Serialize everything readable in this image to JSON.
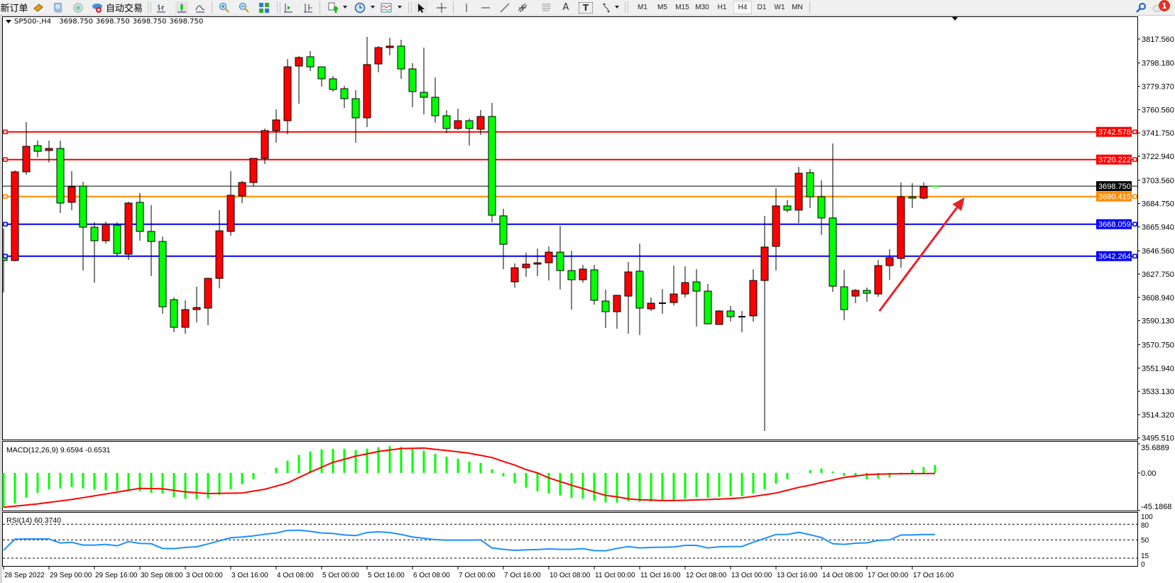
{
  "toolbar": {
    "new_order": "新订单",
    "auto_trading": "自动交易",
    "icons": [
      "market-watch-icon",
      "navigator-icon",
      "signals-icon",
      "auto-trading-icon",
      "bar-chart-icon",
      "candlestick-icon",
      "line-chart-icon",
      "zoom-in-icon",
      "zoom-out-icon",
      "tile-windows-icon",
      "auto-scroll-icon",
      "chart-shift-icon",
      "indicators-icon",
      "periods-icon",
      "templates-icon",
      "cursor-icon",
      "crosshair-icon",
      "vertical-line-icon",
      "horizontal-line-icon",
      "trend-line-icon",
      "equidistant-channel-icon",
      "fibonacci-icon",
      "text-icon",
      "text-label-icon",
      "arrows-icon",
      "search-icon",
      "notifications-icon"
    ],
    "text_tool": "A",
    "label_tool": "T",
    "timeframes": [
      "M1",
      "M5",
      "M15",
      "M30",
      "H1",
      "H4",
      "D1",
      "W1",
      "MN"
    ],
    "active_timeframe": "H4",
    "notification_count": "1"
  },
  "chart": {
    "symbol_timeframe": "SP500-,H4",
    "ohlc": [
      "3698.750",
      "3698.750",
      "3698.750",
      "3698.750"
    ]
  },
  "chart_data": {
    "type": "candlestick",
    "symbol": "SP500-",
    "timeframe": "H4",
    "colors": {
      "bull": "#ff0000",
      "bear": "#00ff00",
      "wick": "#000000"
    },
    "ylim": [
      3495.51,
      3827.0
    ],
    "grid": false,
    "candle_fields": [
      "open",
      "high",
      "low",
      "close"
    ],
    "candles": [
      [
        3643.8,
        3664.5,
        3612.9,
        3638.7
      ],
      [
        3638.7,
        3711.5,
        3638.1,
        3710.3
      ],
      [
        3710.3,
        3750.4,
        3708.0,
        3730.9
      ],
      [
        3731.5,
        3735.5,
        3722.3,
        3726.9
      ],
      [
        3727.5,
        3735.5,
        3717.8,
        3729.2
      ],
      [
        3729.2,
        3735.5,
        3677.1,
        3685.1
      ],
      [
        3685.7,
        3710.9,
        3679.4,
        3698.3
      ],
      [
        3698.8,
        3702.3,
        3630.6,
        3665.6
      ],
      [
        3665.6,
        3669.6,
        3620.9,
        3654.7
      ],
      [
        3654.7,
        3670.2,
        3652.4,
        3667.9
      ],
      [
        3667.3,
        3669.6,
        3642.1,
        3644.4
      ],
      [
        3643.8,
        3686.2,
        3639.2,
        3685.1
      ],
      [
        3685.7,
        3693.1,
        3654.7,
        3662.2
      ],
      [
        3662.2,
        3683.4,
        3626.1,
        3654.1
      ],
      [
        3654.1,
        3658.1,
        3595.7,
        3601.4
      ],
      [
        3607.1,
        3608.9,
        3580.8,
        3584.8
      ],
      [
        3584.8,
        3606.6,
        3579.6,
        3599.1
      ],
      [
        3599.1,
        3617.5,
        3588.8,
        3600.8
      ],
      [
        3600.3,
        3624.9,
        3586.5,
        3624.3
      ],
      [
        3624.3,
        3679.4,
        3616.3,
        3662.7
      ],
      [
        3662.2,
        3710.9,
        3658.7,
        3691.4
      ],
      [
        3690.8,
        3702.9,
        3685.1,
        3701.7
      ],
      [
        3701.7,
        3721.2,
        3698.8,
        3721.2
      ],
      [
        3721.2,
        3745.3,
        3716.6,
        3743.6
      ],
      [
        3743.6,
        3760.8,
        3733.8,
        3752.2
      ],
      [
        3751.6,
        3801.4,
        3740.7,
        3795.1
      ],
      [
        3795.7,
        3803.7,
        3765.3,
        3802.6
      ],
      [
        3803.2,
        3807.8,
        3791.7,
        3795.1
      ],
      [
        3795.1,
        3795.1,
        3779.1,
        3785.4
      ],
      [
        3785.4,
        3787.7,
        3775.1,
        3776.8
      ],
      [
        3777.4,
        3779.7,
        3761.9,
        3769.4
      ],
      [
        3769.4,
        3776.2,
        3733.8,
        3753.9
      ],
      [
        3753.9,
        3819.2,
        3746.4,
        3796.9
      ],
      [
        3797.4,
        3811.8,
        3790.6,
        3810.6
      ],
      [
        3810.6,
        3818.6,
        3804.3,
        3811.8
      ],
      [
        3811.8,
        3816.9,
        3785.4,
        3793.4
      ],
      [
        3793.4,
        3798.0,
        3762.5,
        3775.1
      ],
      [
        3774.5,
        3810.6,
        3756.7,
        3770.5
      ],
      [
        3770.5,
        3786.5,
        3749.9,
        3755.6
      ],
      [
        3755.6,
        3760.2,
        3741.3,
        3745.3
      ],
      [
        3745.3,
        3761.3,
        3744.1,
        3751.6
      ],
      [
        3751.6,
        3753.3,
        3731.5,
        3745.3
      ],
      [
        3744.7,
        3760.2,
        3740.1,
        3755.0
      ],
      [
        3755.0,
        3765.9,
        3669.6,
        3675.3
      ],
      [
        3674.8,
        3680.5,
        3631.8,
        3651.8
      ],
      [
        3621.5,
        3636.4,
        3616.9,
        3632.9
      ],
      [
        3632.9,
        3645.0,
        3625.5,
        3635.8
      ],
      [
        3635.8,
        3648.4,
        3626.1,
        3636.9
      ],
      [
        3636.9,
        3650.1,
        3622.6,
        3645.5
      ],
      [
        3645.5,
        3666.7,
        3615.2,
        3630.6
      ],
      [
        3630.6,
        3646.7,
        3599.1,
        3623.2
      ],
      [
        3623.2,
        3635.2,
        3620.9,
        3631.8
      ],
      [
        3631.2,
        3635.2,
        3603.1,
        3606.6
      ],
      [
        3606.0,
        3615.2,
        3584.2,
        3597.4
      ],
      [
        3597.4,
        3611.1,
        3583.6,
        3610.6
      ],
      [
        3610.0,
        3637.5,
        3579.6,
        3629.5
      ],
      [
        3630.1,
        3652.4,
        3578.5,
        3600.3
      ],
      [
        3599.7,
        3608.9,
        3598.0,
        3604.3
      ],
      [
        3604.3,
        3615.7,
        3595.7,
        3604.3
      ],
      [
        3604.8,
        3634.6,
        3602.5,
        3611.7
      ],
      [
        3611.7,
        3634.1,
        3608.9,
        3620.9
      ],
      [
        3621.5,
        3631.8,
        3585.4,
        3614.0
      ],
      [
        3614.0,
        3619.7,
        3587.1,
        3587.6
      ],
      [
        3587.1,
        3598.5,
        3587.1,
        3598.0
      ],
      [
        3598.0,
        3602.0,
        3589.4,
        3593.4
      ],
      [
        3593.4,
        3598.0,
        3580.8,
        3593.4
      ],
      [
        3594.0,
        3631.8,
        3589.4,
        3622.6
      ],
      [
        3622.6,
        3674.8,
        3501.1,
        3649.6
      ],
      [
        3650.1,
        3697.1,
        3630.6,
        3682.8
      ],
      [
        3682.8,
        3687.4,
        3677.6,
        3679.4
      ],
      [
        3679.4,
        3714.3,
        3669.0,
        3709.2
      ],
      [
        3709.7,
        3712.6,
        3681.1,
        3690.2
      ],
      [
        3690.2,
        3703.4,
        3659.3,
        3673.1
      ],
      [
        3673.1,
        3733.2,
        3613.4,
        3618.0
      ],
      [
        3617.5,
        3631.2,
        3590.5,
        3599.1
      ],
      [
        3610.0,
        3615.7,
        3604.3,
        3614.6
      ],
      [
        3614.6,
        3616.9,
        3605.4,
        3612.3
      ],
      [
        3611.7,
        3639.2,
        3609.4,
        3634.6
      ],
      [
        3634.6,
        3647.8,
        3623.2,
        3641.0
      ],
      [
        3640.4,
        3701.7,
        3632.9,
        3690.2
      ],
      [
        3690.2,
        3701.1,
        3681.1,
        3689.1
      ],
      [
        3689.1,
        3701.7,
        3688.0,
        3698.3
      ],
      [
        3698.75,
        3698.75,
        3698.75,
        3698.75
      ]
    ],
    "price_axis": {
      "ticks": [
        "3817.560",
        "3798.180",
        "3779.370",
        "3760.560",
        "3741.750",
        "3722.940",
        "3703.560",
        "3684.750",
        "3665.940",
        "3646.560",
        "3627.750",
        "3608.940",
        "3590.130",
        "3570.750",
        "3551.940",
        "3533.130",
        "3514.320",
        "3495.510"
      ]
    },
    "x_axis": {
      "labels": [
        {
          "bar": 0,
          "text": "28 Sep 2022"
        },
        {
          "bar": 4,
          "text": "29 Sep 00:00"
        },
        {
          "bar": 8,
          "text": "29 Sep 16:00"
        },
        {
          "bar": 12,
          "text": "30 Sep 08:00"
        },
        {
          "bar": 16,
          "text": "3 Oct 00:00"
        },
        {
          "bar": 20,
          "text": "3 Oct 16:00"
        },
        {
          "bar": 24,
          "text": "4 Oct 08:00"
        },
        {
          "bar": 28,
          "text": "5 Oct 00:00"
        },
        {
          "bar": 32,
          "text": "5 Oct 16:00"
        },
        {
          "bar": 36,
          "text": "6 Oct 08:00"
        },
        {
          "bar": 40,
          "text": "7 Oct 00:00"
        },
        {
          "bar": 44,
          "text": "7 Oct 16:00"
        },
        {
          "bar": 48,
          "text": "10 Oct 08:00"
        },
        {
          "bar": 52,
          "text": "11 Oct 00:00"
        },
        {
          "bar": 56,
          "text": "11 Oct 16:00"
        },
        {
          "bar": 60,
          "text": "12 Oct 08:00"
        },
        {
          "bar": 64,
          "text": "13 Oct 00:00"
        },
        {
          "bar": 68,
          "text": "13 Oct 16:00"
        },
        {
          "bar": 72,
          "text": "14 Oct 08:00"
        },
        {
          "bar": 76,
          "text": "17 Oct 00:00"
        },
        {
          "bar": 80,
          "text": "17 Oct 16:00"
        }
      ]
    },
    "levels": [
      {
        "value": "3742.578",
        "color": "#ff0000",
        "style": "horizontal-line"
      },
      {
        "value": "3720.222",
        "color": "#ff0000",
        "style": "horizontal-line"
      },
      {
        "value": "3698.750",
        "color": "#000000",
        "style": "current-price"
      },
      {
        "value": "3690.415",
        "color": "#ff8c00",
        "style": "horizontal-line"
      },
      {
        "value": "3668.059",
        "color": "#0000ff",
        "style": "horizontal-line"
      },
      {
        "value": "3642.264",
        "color": "#0000ff",
        "style": "horizontal-line"
      }
    ],
    "annotations": [
      {
        "type": "arrow",
        "color": "#e8202a",
        "from": {
          "bar": 77.1,
          "price": 3597.9
        },
        "to": {
          "bar": 84.6,
          "price": 3689.7
        }
      }
    ],
    "macd": {
      "title": "MACD(12,26,9) 9.6594 -0.6531",
      "axis_labels": [
        "35.6889",
        "0.00",
        "-45.1868"
      ],
      "ylim": [
        -45.1868,
        35.6889
      ],
      "histogram_color": "#00ff00",
      "signal_color": "#ff0000",
      "main": [
        -41.7,
        -37.1,
        -29.9,
        -24.1,
        -19.8,
        -18.7,
        -17.2,
        -18.7,
        -20.4,
        -21.0,
        -21.6,
        -21.3,
        -22.1,
        -24.1,
        -25.0,
        -29.3,
        -31.3,
        -31.9,
        -31.0,
        -26.4,
        -19.8,
        -13.5,
        -7.8,
        -0.3,
        6.3,
        14.9,
        21.8,
        25.9,
        28.7,
        29.3,
        29.3,
        27.6,
        29.6,
        31.3,
        32.5,
        31.6,
        29.3,
        27.0,
        23.3,
        19.8,
        17.2,
        13.8,
        12.1,
        4.4,
        -4.0,
        -12.1,
        -17.8,
        -22.4,
        -25.0,
        -27.3,
        -30.2,
        -31.0,
        -33.6,
        -35.9,
        -35.9,
        -34.2,
        -35.1,
        -35.1,
        -33.6,
        -33.0,
        -31.3,
        -29.6,
        -30.2,
        -29.0,
        -28.2,
        -28.2,
        -25.0,
        -19.8,
        -12.9,
        -7.8,
        -0.3,
        3.4,
        5.5,
        1.7,
        -3.4,
        -4.0,
        -7.8,
        -6.9,
        -5.7,
        0.3,
        3.7,
        7.2,
        9.6594
      ],
      "signal": [
        -41.7,
        -40.3,
        -39.0,
        -37.6,
        -35.8,
        -34.0,
        -32.2,
        -30.0,
        -27.8,
        -25.6,
        -23.3,
        -21.0,
        -18.7,
        -19.0,
        -19.3,
        -21.1,
        -23.0,
        -24.0,
        -25.0,
        -24.8,
        -24.6,
        -24.4,
        -22.1,
        -19.8,
        -16.0,
        -12.1,
        -5.6,
        0.9,
        6.9,
        12.9,
        16.6,
        20.4,
        23.2,
        26.1,
        27.8,
        29.6,
        29.9,
        30.2,
        28.7,
        27.3,
        25.6,
        23.9,
        21.3,
        18.7,
        14.0,
        9.5,
        4.0,
        0.0,
        -6.0,
        -10.5,
        -14.9,
        -19.0,
        -23.2,
        -27.3,
        -29.0,
        -31.5,
        -32.5,
        -33.0,
        -33.5,
        -33.5,
        -33.2,
        -32.8,
        -32.3,
        -31.8,
        -31.0,
        -30.3,
        -28.5,
        -26.5,
        -24.4,
        -21.0,
        -17.5,
        -14.9,
        -11.5,
        -8.6,
        -5.5,
        -3.8,
        -2.0,
        -1.5,
        -1.2,
        -1.0,
        -0.9,
        -0.8,
        -0.6531
      ]
    },
    "rsi": {
      "title": "RSI(14) 60.3740",
      "axis_labels": [
        "100",
        "80",
        "50",
        "15",
        "0"
      ],
      "levels": [
        80,
        50,
        15
      ],
      "ylim": [
        0,
        100
      ],
      "color": "#1e90ff",
      "values": [
        30.0,
        51.4,
        51.8,
        51.8,
        51.8,
        44.1,
        45.5,
        40.0,
        40.0,
        41.4,
        38.6,
        46.8,
        43.2,
        42.7,
        33.6,
        33.2,
        35.5,
        36.8,
        42.3,
        48.2,
        54.1,
        55.5,
        57.7,
        60.9,
        63.2,
        68.2,
        68.6,
        66.4,
        63.2,
        62.3,
        59.5,
        58.2,
        64.1,
        65.5,
        64.1,
        60.5,
        55.5,
        53.2,
        50.5,
        49.5,
        49.5,
        49.5,
        50.0,
        34.5,
        31.8,
        30.0,
        30.9,
        31.4,
        32.7,
        31.8,
        31.8,
        33.2,
        29.5,
        29.1,
        33.6,
        37.3,
        34.5,
        35.5,
        35.9,
        36.4,
        39.5,
        39.5,
        34.5,
        36.8,
        37.3,
        37.3,
        45.5,
        52.7,
        60.5,
        60.5,
        64.5,
        60.0,
        54.5,
        42.7,
        41.4,
        43.6,
        44.5,
        49.1,
        50.0,
        59.5,
        59.5,
        60.5,
        60.374
      ]
    }
  }
}
